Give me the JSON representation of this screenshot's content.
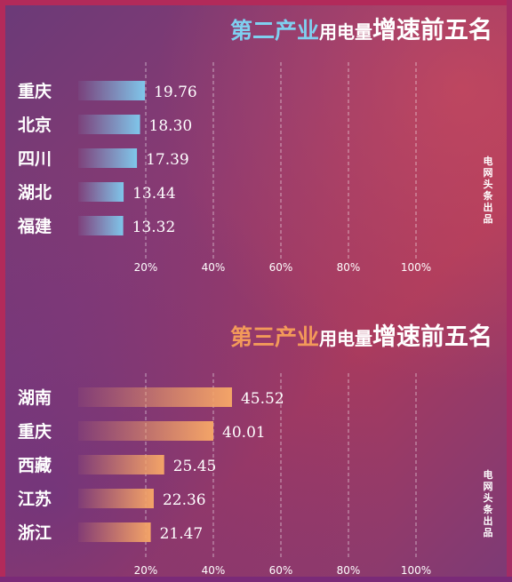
{
  "chart_data": [
    {
      "type": "bar",
      "title_highlight": "第二产业",
      "title_mid": "用电量",
      "title_big": "增速前五名",
      "categories": [
        "重庆",
        "北京",
        "四川",
        "湖北",
        "福建"
      ],
      "values": [
        19.76,
        18.3,
        17.39,
        13.44,
        13.32
      ],
      "xticks": [
        "20%",
        "40%",
        "60%",
        "80%",
        "100%"
      ],
      "xlim": [
        0,
        100
      ],
      "bar_color": "#7fc6ea",
      "grid": true
    },
    {
      "type": "bar",
      "title_highlight": "第三产业",
      "title_mid": "用电量",
      "title_big": "增速前五名",
      "categories": [
        "湖南",
        "重庆",
        "西藏",
        "江苏",
        "浙江"
      ],
      "values": [
        45.52,
        40.01,
        25.45,
        22.36,
        21.47
      ],
      "xticks": [
        "20%",
        "40%",
        "60%",
        "80%",
        "100%"
      ],
      "xlim": [
        0,
        100
      ],
      "bar_color": "#f3a468",
      "grid": true
    }
  ],
  "watermark": "电网头条出品"
}
